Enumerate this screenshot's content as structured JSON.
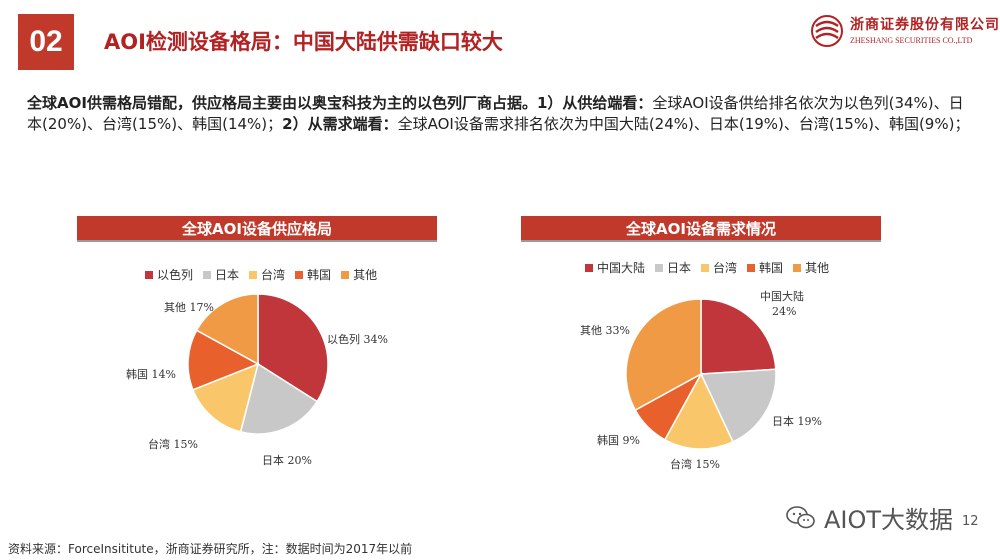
{
  "header": {
    "section_number": "02",
    "title": "AOI检测设备格局：中国大陆供需缺口较大",
    "logo_cn": "浙商证券股份有限公司",
    "logo_en": "ZHESHANG SECURITIES CO.,LTD"
  },
  "intro": {
    "bold_1": "全球AOI供需格局错配，供应格局主要由以奥宝科技为主的以色列厂商占据。1）从供给端看：",
    "text_1": "全球AOI设备供给排名依次为以色列(34%)、日本(20%)、台湾(15%)、韩国(14%)；",
    "bold_2": "2）从需求端看：",
    "text_2": "全球AOI设备需求排名依次为中国大陆(24%)、日本(19%)、台湾(15%)、韩国(9%)；"
  },
  "chart_data": [
    {
      "type": "pie",
      "title": "全球AOI设备供应格局",
      "categories": [
        "以色列",
        "日本",
        "台湾",
        "韩国",
        "其他"
      ],
      "values": [
        34,
        20,
        15,
        14,
        17
      ],
      "labels": [
        "以色列 34%",
        "日本 20%",
        "台湾 15%",
        "韩国 14%",
        "其他 17%"
      ],
      "colors": [
        "#c0363a",
        "#c8c8c8",
        "#f9c76a",
        "#e8612c",
        "#f19a45"
      ],
      "legend_position": "top"
    },
    {
      "type": "pie",
      "title": "全球AOI设备需求情况",
      "categories": [
        "中国大陆",
        "日本",
        "台湾",
        "韩国",
        "其他"
      ],
      "values": [
        24,
        19,
        15,
        9,
        33
      ],
      "labels": [
        "中国大陆 24%",
        "日本 19%",
        "台湾 15%",
        "韩国 9%",
        "其他 33%"
      ],
      "colors": [
        "#c0363a",
        "#c8c8c8",
        "#f9c76a",
        "#e8612c",
        "#f19a45"
      ],
      "legend_position": "top"
    }
  ],
  "footer": {
    "source": "资料来源：ForceInsititute，浙商证券研究所，注：数据时间为2017年以前"
  },
  "watermark": {
    "text": "AIOT大数据"
  },
  "page_number": "12"
}
